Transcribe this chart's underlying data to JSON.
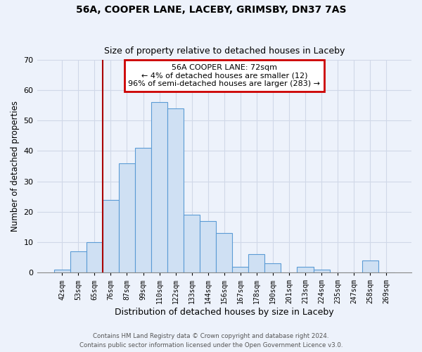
{
  "title1": "56A, COOPER LANE, LACEBY, GRIMSBY, DN37 7AS",
  "title2": "Size of property relative to detached houses in Laceby",
  "xlabel": "Distribution of detached houses by size in Laceby",
  "ylabel": "Number of detached properties",
  "bar_labels": [
    "42sqm",
    "53sqm",
    "65sqm",
    "76sqm",
    "87sqm",
    "99sqm",
    "110sqm",
    "122sqm",
    "133sqm",
    "144sqm",
    "156sqm",
    "167sqm",
    "178sqm",
    "190sqm",
    "201sqm",
    "213sqm",
    "224sqm",
    "235sqm",
    "247sqm",
    "258sqm",
    "269sqm"
  ],
  "bar_values": [
    1,
    7,
    10,
    24,
    36,
    41,
    56,
    54,
    19,
    17,
    13,
    2,
    6,
    3,
    0,
    2,
    1,
    0,
    0,
    4,
    0
  ],
  "bar_color": "#cfe0f3",
  "bar_edge_color": "#5b9bd5",
  "vline_x_idx": 3,
  "vline_color": "#aa0000",
  "annotation_text": "56A COOPER LANE: 72sqm\n← 4% of detached houses are smaller (12)\n96% of semi-detached houses are larger (283) →",
  "annotation_box_color": "#ffffff",
  "annotation_box_edge": "#cc0000",
  "ylim": [
    0,
    70
  ],
  "yticks": [
    0,
    10,
    20,
    30,
    40,
    50,
    60,
    70
  ],
  "grid_color": "#d0d8e8",
  "footer1": "Contains HM Land Registry data © Crown copyright and database right 2024.",
  "footer2": "Contains public sector information licensed under the Open Government Licence v3.0.",
  "bg_color": "#edf2fb"
}
